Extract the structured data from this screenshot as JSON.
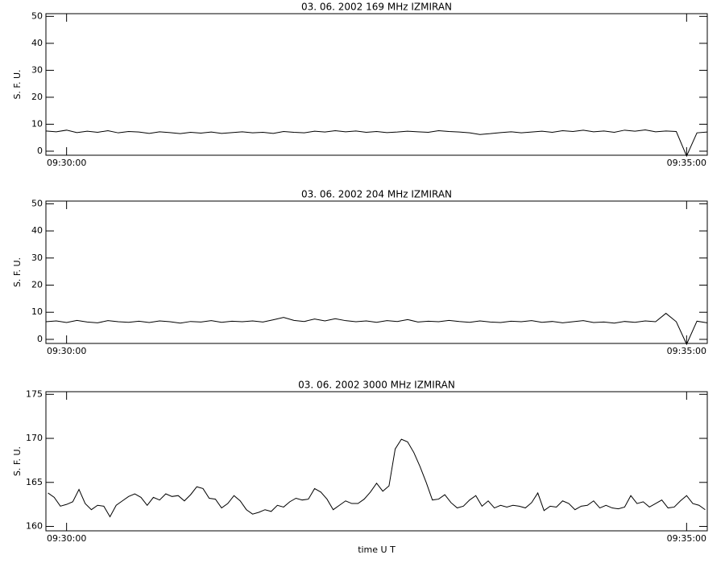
{
  "chart_data": [
    {
      "type": "line",
      "title": "03.  06.  2002    169 MHz    IZMIRAN",
      "ylabel": "S. F. U.",
      "color": "#000000",
      "xlim": [
        34190,
        34510
      ],
      "xticks": [
        {
          "value": 34200,
          "label": "09:30:00"
        },
        {
          "value": 34500,
          "label": "09:35:00"
        }
      ],
      "ylim": [
        -1.5,
        51
      ],
      "yticks": [
        0,
        10,
        20,
        30,
        40,
        50
      ],
      "x": [
        34190,
        34195,
        34200,
        34205,
        34210,
        34215,
        34220,
        34225,
        34230,
        34235,
        34240,
        34245,
        34250,
        34255,
        34260,
        34265,
        34270,
        34275,
        34280,
        34285,
        34290,
        34295,
        34300,
        34305,
        34310,
        34315,
        34320,
        34325,
        34330,
        34335,
        34340,
        34345,
        34350,
        34355,
        34360,
        34365,
        34370,
        34375,
        34380,
        34385,
        34390,
        34395,
        34400,
        34405,
        34410,
        34415,
        34420,
        34425,
        34430,
        34435,
        34440,
        34445,
        34450,
        34455,
        34460,
        34465,
        34470,
        34475,
        34480,
        34485,
        34490,
        34495,
        34500,
        34505,
        34510
      ],
      "values": [
        7.5,
        7.2,
        7.8,
        6.9,
        7.4,
        7.0,
        7.6,
        6.8,
        7.3,
        7.1,
        6.6,
        7.2,
        6.9,
        6.5,
        7.0,
        6.7,
        7.1,
        6.6,
        6.9,
        7.2,
        6.8,
        7.0,
        6.6,
        7.3,
        7.0,
        6.8,
        7.4,
        7.1,
        7.6,
        7.2,
        7.5,
        7.0,
        7.3,
        6.9,
        7.1,
        7.4,
        7.2,
        7.0,
        7.6,
        7.3,
        7.1,
        6.8,
        6.2,
        6.5,
        6.9,
        7.2,
        6.8,
        7.1,
        7.4,
        7.0,
        7.6,
        7.3,
        7.8,
        7.2,
        7.5,
        7.0,
        7.8,
        7.4,
        7.9,
        7.2,
        7.5,
        7.3,
        -1.8,
        6.8,
        7.1
      ]
    },
    {
      "type": "line",
      "title": "03.  06.  2002    204 MHz    IZMIRAN",
      "ylabel": "S. F. U.",
      "color": "#000000",
      "xlim": [
        34190,
        34510
      ],
      "xticks": [
        {
          "value": 34200,
          "label": "09:30:00"
        },
        {
          "value": 34500,
          "label": "09:35:00"
        }
      ],
      "ylim": [
        -1.5,
        51
      ],
      "yticks": [
        0,
        10,
        20,
        30,
        40,
        50
      ],
      "x": [
        34190,
        34195,
        34200,
        34205,
        34210,
        34215,
        34220,
        34225,
        34230,
        34235,
        34240,
        34245,
        34250,
        34255,
        34260,
        34265,
        34270,
        34275,
        34280,
        34285,
        34290,
        34295,
        34300,
        34305,
        34310,
        34315,
        34320,
        34325,
        34330,
        34335,
        34340,
        34345,
        34350,
        34355,
        34360,
        34365,
        34370,
        34375,
        34380,
        34385,
        34390,
        34395,
        34400,
        34405,
        34410,
        34415,
        34420,
        34425,
        34430,
        34435,
        34440,
        34445,
        34450,
        34455,
        34460,
        34465,
        34470,
        34475,
        34480,
        34485,
        34490,
        34495,
        34500,
        34505,
        34510
      ],
      "values": [
        6.5,
        6.8,
        6.2,
        7.0,
        6.4,
        6.1,
        6.9,
        6.5,
        6.3,
        6.7,
        6.2,
        6.8,
        6.5,
        6.0,
        6.6,
        6.4,
        6.9,
        6.3,
        6.7,
        6.5,
        6.8,
        6.4,
        7.2,
        8.1,
        7.0,
        6.6,
        7.5,
        6.8,
        7.6,
        6.9,
        6.5,
        6.8,
        6.3,
        6.9,
        6.6,
        7.3,
        6.4,
        6.7,
        6.5,
        7.0,
        6.6,
        6.3,
        6.8,
        6.4,
        6.2,
        6.7,
        6.5,
        6.9,
        6.3,
        6.6,
        6.1,
        6.5,
        6.9,
        6.2,
        6.4,
        6.0,
        6.6,
        6.3,
        6.8,
        6.5,
        9.6,
        6.5,
        -1.8,
        6.7,
        6.1
      ]
    },
    {
      "type": "line",
      "title": "03.  06.  2002    3000 MHz    IZMIRAN",
      "ylabel": "S. F. U.",
      "xlabel": "time  U T",
      "color": "#000000",
      "xlim": [
        34190,
        34510
      ],
      "xticks": [
        {
          "value": 34200,
          "label": "09:30:00"
        },
        {
          "value": 34500,
          "label": "09:35:00"
        }
      ],
      "ylim": [
        159.5,
        175.3
      ],
      "yticks": [
        160,
        165,
        170,
        175
      ],
      "x": [
        34191,
        34194,
        34197,
        34200,
        34203,
        34206,
        34209,
        34212,
        34215,
        34218,
        34221,
        34224,
        34227,
        34230,
        34233,
        34236,
        34239,
        34242,
        34245,
        34248,
        34251,
        34254,
        34257,
        34260,
        34263,
        34266,
        34269,
        34272,
        34275,
        34278,
        34281,
        34284,
        34287,
        34290,
        34293,
        34296,
        34299,
        34302,
        34305,
        34308,
        34311,
        34314,
        34317,
        34320,
        34323,
        34326,
        34329,
        34332,
        34335,
        34338,
        34341,
        34344,
        34347,
        34350,
        34353,
        34356,
        34359,
        34362,
        34365,
        34368,
        34371,
        34374,
        34377,
        34380,
        34383,
        34386,
        34389,
        34392,
        34395,
        34398,
        34401,
        34404,
        34407,
        34410,
        34413,
        34416,
        34419,
        34422,
        34425,
        34428,
        34431,
        34434,
        34437,
        34440,
        34443,
        34446,
        34449,
        34452,
        34455,
        34458,
        34461,
        34464,
        34467,
        34470,
        34473,
        34476,
        34479,
        34482,
        34485,
        34488,
        34491,
        34494,
        34497,
        34500,
        34503,
        34506,
        34509
      ],
      "values": [
        163.8,
        163.3,
        162.3,
        162.5,
        162.8,
        164.2,
        162.6,
        161.9,
        162.4,
        162.3,
        161.1,
        162.4,
        162.9,
        163.4,
        163.7,
        163.3,
        162.4,
        163.3,
        163.0,
        163.7,
        163.4,
        163.5,
        162.9,
        163.6,
        164.5,
        164.3,
        163.2,
        163.1,
        162.1,
        162.6,
        163.5,
        162.9,
        161.9,
        161.4,
        161.6,
        161.9,
        161.7,
        162.4,
        162.2,
        162.8,
        163.2,
        163.0,
        163.1,
        164.3,
        163.9,
        163.1,
        161.9,
        162.4,
        162.9,
        162.6,
        162.6,
        163.1,
        163.9,
        164.9,
        164.0,
        164.6,
        168.8,
        169.9,
        169.6,
        168.4,
        166.8,
        165.0,
        163.0,
        163.1,
        163.6,
        162.7,
        162.1,
        162.3,
        163.0,
        163.5,
        162.3,
        162.9,
        162.1,
        162.4,
        162.2,
        162.4,
        162.3,
        162.1,
        162.7,
        163.8,
        161.8,
        162.3,
        162.2,
        162.9,
        162.6,
        161.9,
        162.3,
        162.4,
        162.9,
        162.1,
        162.4,
        162.1,
        162.0,
        162.2,
        163.5,
        162.6,
        162.8,
        162.2,
        162.6,
        163.0,
        162.1,
        162.2,
        162.9,
        163.5,
        162.6,
        162.4,
        161.9
      ]
    }
  ]
}
